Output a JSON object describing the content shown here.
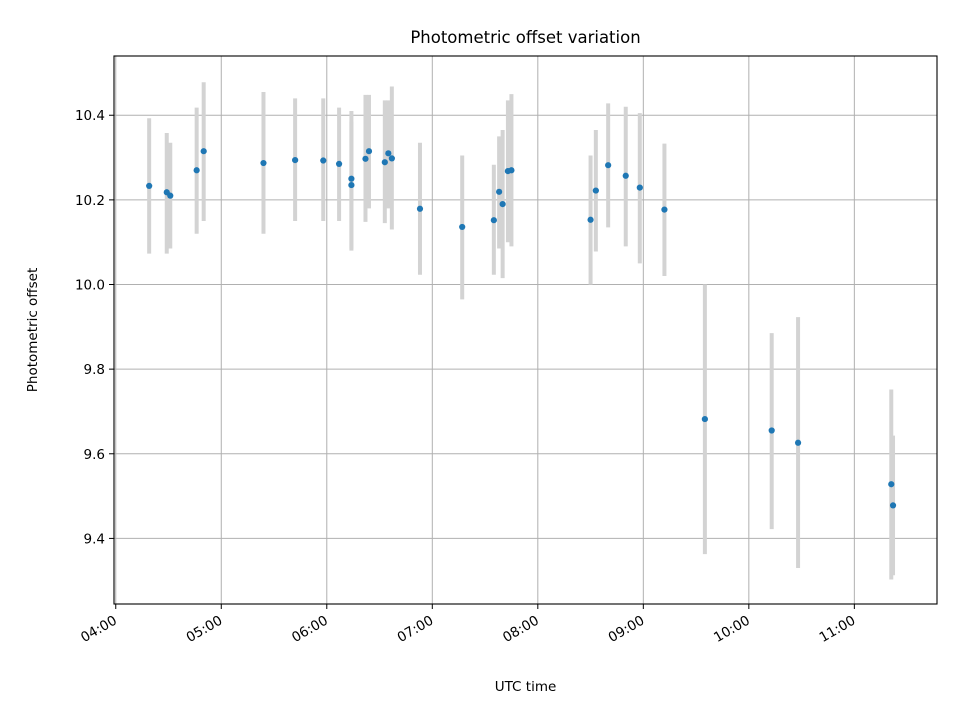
{
  "chart_data": {
    "type": "scatter",
    "title": "Photometric offset variation",
    "xlabel": "UTC time",
    "ylabel": "Photometric offset",
    "xlim": [
      "03:59",
      "11:47"
    ],
    "ylim": [
      9.245,
      10.54
    ],
    "grid": true,
    "colors": {
      "point": "#1f77b4",
      "errorbar": "#d3d3d3"
    },
    "x_ticks": [
      "04:00",
      "05:00",
      "06:00",
      "07:00",
      "08:00",
      "09:00",
      "10:00",
      "11:00"
    ],
    "y_ticks": [
      9.4,
      9.6,
      9.8,
      10.0,
      10.2,
      10.4
    ],
    "points": [
      {
        "t": "04:19",
        "y": 10.233,
        "lo": 10.073,
        "hi": 10.393
      },
      {
        "t": "04:29",
        "y": 10.218,
        "lo": 10.073,
        "hi": 10.358
      },
      {
        "t": "04:31",
        "y": 10.21,
        "lo": 10.085,
        "hi": 10.335
      },
      {
        "t": "04:46",
        "y": 10.27,
        "lo": 10.12,
        "hi": 10.418
      },
      {
        "t": "04:50",
        "y": 10.315,
        "lo": 10.15,
        "hi": 10.478
      },
      {
        "t": "05:24",
        "y": 10.287,
        "lo": 10.12,
        "hi": 10.455
      },
      {
        "t": "05:42",
        "y": 10.294,
        "lo": 10.15,
        "hi": 10.44
      },
      {
        "t": "05:58",
        "y": 10.293,
        "lo": 10.15,
        "hi": 10.44
      },
      {
        "t": "06:07",
        "y": 10.285,
        "lo": 10.15,
        "hi": 10.418
      },
      {
        "t": "06:14",
        "y": 10.25,
        "lo": 10.08,
        "hi": 10.41
      },
      {
        "t": "06:14",
        "y": 10.235,
        "lo": 10.085,
        "hi": 10.385
      },
      {
        "t": "06:22",
        "y": 10.297,
        "lo": 10.148,
        "hi": 10.448
      },
      {
        "t": "06:24",
        "y": 10.315,
        "lo": 10.18,
        "hi": 10.448
      },
      {
        "t": "06:33",
        "y": 10.289,
        "lo": 10.145,
        "hi": 10.435
      },
      {
        "t": "06:35",
        "y": 10.31,
        "lo": 10.18,
        "hi": 10.435
      },
      {
        "t": "06:37",
        "y": 10.298,
        "lo": 10.13,
        "hi": 10.468
      },
      {
        "t": "06:53",
        "y": 10.179,
        "lo": 10.023,
        "hi": 10.335
      },
      {
        "t": "07:17",
        "y": 10.136,
        "lo": 9.965,
        "hi": 10.305
      },
      {
        "t": "07:35",
        "y": 10.152,
        "lo": 10.023,
        "hi": 10.283
      },
      {
        "t": "07:38",
        "y": 10.219,
        "lo": 10.085,
        "hi": 10.35
      },
      {
        "t": "07:40",
        "y": 10.19,
        "lo": 10.015,
        "hi": 10.365
      },
      {
        "t": "07:43",
        "y": 10.268,
        "lo": 10.1,
        "hi": 10.435
      },
      {
        "t": "07:45",
        "y": 10.27,
        "lo": 10.09,
        "hi": 10.45
      },
      {
        "t": "08:30",
        "y": 10.153,
        "lo": 10.0,
        "hi": 10.305
      },
      {
        "t": "08:33",
        "y": 10.222,
        "lo": 10.078,
        "hi": 10.365
      },
      {
        "t": "08:40",
        "y": 10.282,
        "lo": 10.135,
        "hi": 10.428
      },
      {
        "t": "08:50",
        "y": 10.257,
        "lo": 10.09,
        "hi": 10.42
      },
      {
        "t": "08:58",
        "y": 10.229,
        "lo": 10.05,
        "hi": 10.405
      },
      {
        "t": "09:12",
        "y": 10.177,
        "lo": 10.02,
        "hi": 10.333
      },
      {
        "t": "09:35",
        "y": 9.682,
        "lo": 9.363,
        "hi": 10.0
      },
      {
        "t": "10:13",
        "y": 9.655,
        "lo": 9.422,
        "hi": 9.885
      },
      {
        "t": "10:28",
        "y": 9.626,
        "lo": 9.33,
        "hi": 9.923
      },
      {
        "t": "11:21",
        "y": 9.528,
        "lo": 9.303,
        "hi": 9.752
      },
      {
        "t": "11:22",
        "y": 9.478,
        "lo": 9.313,
        "hi": 9.643
      }
    ]
  }
}
